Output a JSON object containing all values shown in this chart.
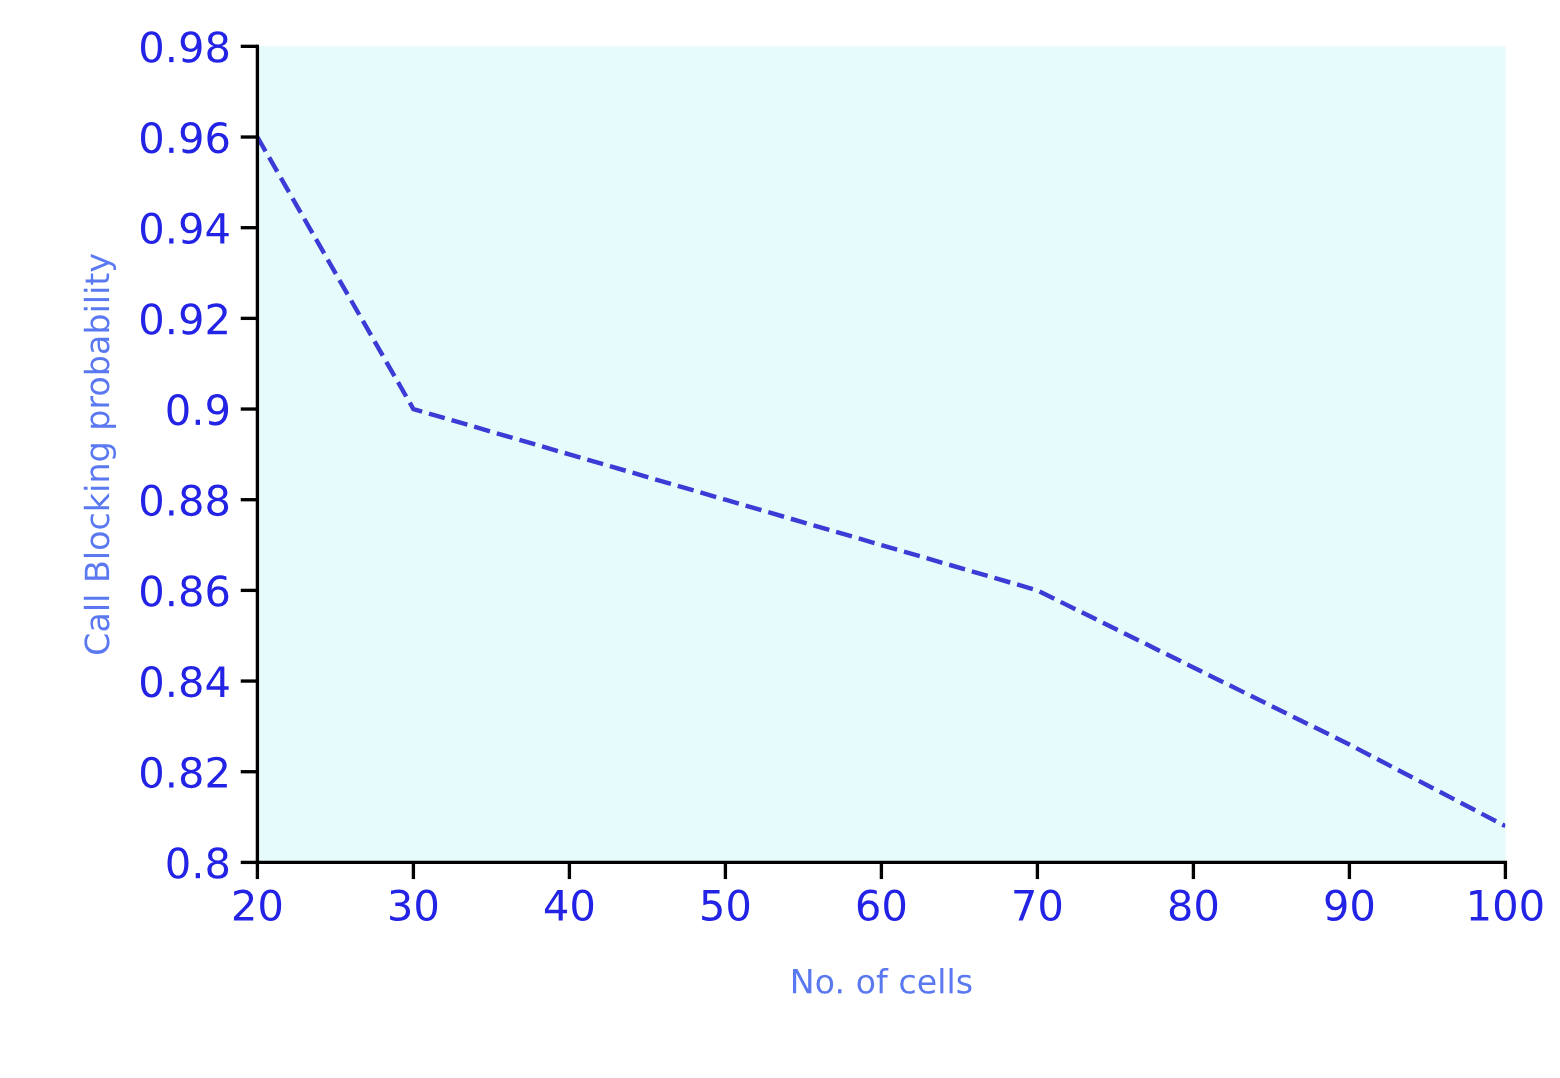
{
  "chart_data": {
    "type": "line",
    "xlabel": "No. of cells",
    "ylabel": "Call Blocking probability",
    "x": [
      20,
      30,
      40,
      50,
      60,
      70,
      80,
      90,
      100
    ],
    "series": [
      {
        "color": "#3b3bd6",
        "values": [
          0.96,
          0.9,
          0.89,
          0.88,
          0.87,
          0.86,
          0.843,
          0.826,
          0.808
        ]
      }
    ],
    "xlim": [
      20,
      100
    ],
    "xticks": [
      20,
      30,
      40,
      50,
      60,
      70,
      80,
      90,
      100
    ],
    "ylim": [
      0.8,
      0.98
    ],
    "yticks": [
      0.8,
      0.82,
      0.84,
      0.86,
      0.88,
      0.9,
      0.92,
      0.94,
      0.96,
      0.98
    ],
    "grid": false,
    "legend": false,
    "marker": "none",
    "line_style": "dashed"
  }
}
